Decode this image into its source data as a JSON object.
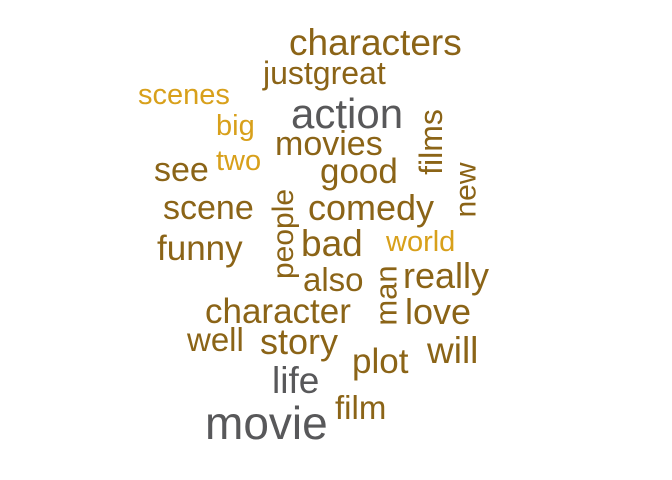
{
  "colors": {
    "gray": "#58585a",
    "brown": "#8b6417",
    "gold": "#d8a01b"
  },
  "words": [
    {
      "key": "characters",
      "text": "characters",
      "color": "brown"
    },
    {
      "key": "justgreat",
      "text": "justgreat",
      "color": "brown"
    },
    {
      "key": "scenes",
      "text": "scenes",
      "color": "gold"
    },
    {
      "key": "action",
      "text": "action",
      "color": "gray"
    },
    {
      "key": "big",
      "text": "big",
      "color": "gold"
    },
    {
      "key": "films",
      "text": "films",
      "color": "brown"
    },
    {
      "key": "movies",
      "text": "movies",
      "color": "brown"
    },
    {
      "key": "two",
      "text": "two",
      "color": "gold"
    },
    {
      "key": "see",
      "text": "see",
      "color": "brown"
    },
    {
      "key": "good",
      "text": "good",
      "color": "brown"
    },
    {
      "key": "new",
      "text": "new",
      "color": "brown"
    },
    {
      "key": "scene",
      "text": "scene",
      "color": "brown"
    },
    {
      "key": "people",
      "text": "people",
      "color": "brown"
    },
    {
      "key": "comedy",
      "text": "comedy",
      "color": "brown"
    },
    {
      "key": "funny",
      "text": "funny",
      "color": "brown"
    },
    {
      "key": "bad",
      "text": "bad",
      "color": "brown"
    },
    {
      "key": "world",
      "text": "world",
      "color": "gold"
    },
    {
      "key": "also",
      "text": "also",
      "color": "brown"
    },
    {
      "key": "man",
      "text": "man",
      "color": "brown"
    },
    {
      "key": "really",
      "text": "really",
      "color": "brown"
    },
    {
      "key": "character",
      "text": "character",
      "color": "brown"
    },
    {
      "key": "love",
      "text": "love",
      "color": "brown"
    },
    {
      "key": "well",
      "text": "well",
      "color": "brown"
    },
    {
      "key": "story",
      "text": "story",
      "color": "brown"
    },
    {
      "key": "will",
      "text": "will",
      "color": "brown"
    },
    {
      "key": "plot",
      "text": "plot",
      "color": "brown"
    },
    {
      "key": "life",
      "text": "life",
      "color": "gray"
    },
    {
      "key": "film",
      "text": "film",
      "color": "brown"
    },
    {
      "key": "movie",
      "text": "movie",
      "color": "gray"
    }
  ]
}
